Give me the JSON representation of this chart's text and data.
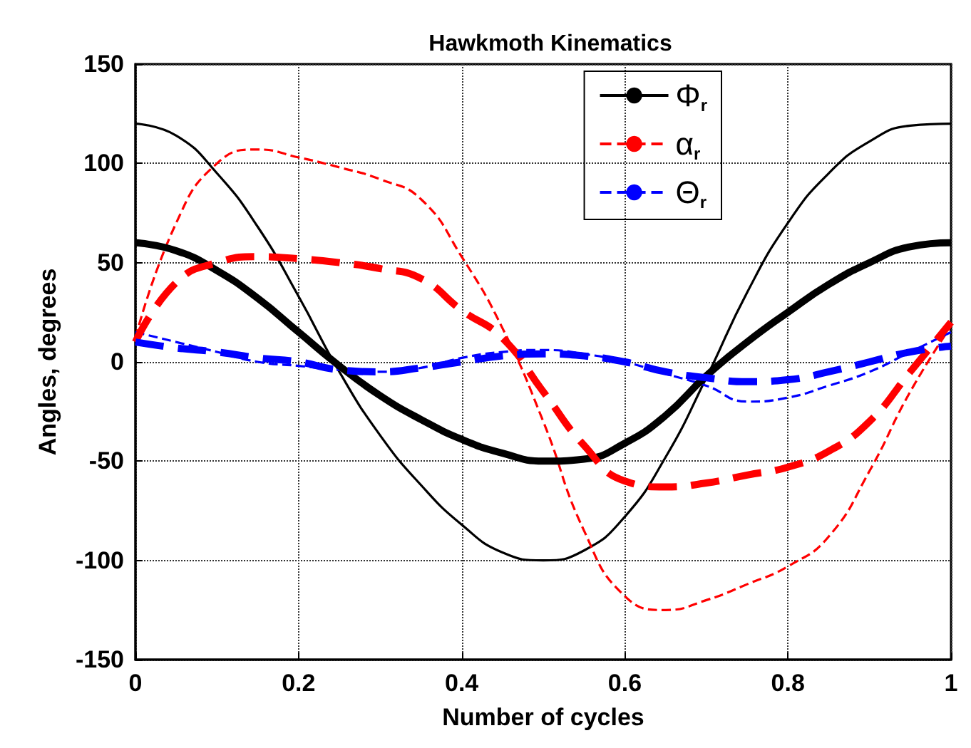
{
  "chart_data": {
    "type": "line",
    "title": "Hawkmoth Kinematics",
    "xlabel": "Number of cycles",
    "ylabel": "Angles, degrees",
    "x": [
      0,
      0.05,
      0.1,
      0.15,
      0.2,
      0.25,
      0.3,
      0.35,
      0.4,
      0.45,
      0.5,
      0.55,
      0.6,
      0.65,
      0.7,
      0.75,
      0.8,
      0.85,
      0.9,
      0.95,
      1
    ],
    "series": [
      {
        "name": "Φ$_{r}$",
        "color": "#000000",
        "line_style": "solid",
        "values": [
          60,
          56,
          46,
          32,
          15,
          -2,
          -17,
          -29,
          -39,
          -46,
          -50,
          -49,
          -41,
          -27,
          -7,
          10,
          25,
          39,
          50,
          58,
          60
        ]
      },
      {
        "name": "α$_{r}$",
        "color": "#ff0000",
        "line_style": "dashed",
        "values": [
          10,
          40,
          50,
          53,
          52,
          50,
          47,
          42,
          26,
          12,
          -15,
          -42,
          -60,
          -63,
          -61,
          -57,
          -53,
          -45,
          -30,
          -5,
          20
        ]
      },
      {
        "name": "Θ$_{r}$",
        "color": "#0000ff",
        "line_style": "dashed",
        "values": [
          10,
          7,
          5,
          2,
          0,
          -4,
          -5,
          -3,
          0,
          3,
          4,
          3,
          0,
          -5,
          -8,
          -10,
          -9,
          -5,
          0,
          5,
          8
        ]
      },
      {
        "color": "#000000",
        "line_style": "solid",
        "values": [
          120,
          114,
          95,
          68,
          33,
          -5,
          -37,
          -62,
          -82,
          -96,
          -100,
          -95,
          -78,
          -48,
          -8,
          35,
          70,
          95,
          111,
          119,
          120
        ]
      },
      {
        "color": "#ff0000",
        "line_style": "dashed",
        "values": [
          12,
          70,
          100,
          107,
          103,
          98,
          92,
          82,
          53,
          17,
          -30,
          -85,
          -118,
          -125,
          -120,
          -112,
          -103,
          -88,
          -55,
          -15,
          18
        ]
      },
      {
        "color": "#0000ff",
        "line_style": "dashed",
        "values": [
          15,
          10,
          5,
          0,
          -2,
          -4,
          -5,
          -3,
          2,
          5,
          6,
          4,
          0,
          -6,
          -12,
          -20,
          -18,
          -12,
          -5,
          5,
          15
        ]
      }
    ],
    "xlim": [
      0,
      1
    ],
    "xticks": [
      0,
      0.2,
      0.4,
      0.6,
      0.8,
      1
    ],
    "ylim": [
      -150,
      150
    ],
    "yticks": [
      -150,
      -100,
      -50,
      0,
      50,
      100,
      150
    ],
    "grid": true,
    "legend": "top right",
    "marker": "none"
  }
}
